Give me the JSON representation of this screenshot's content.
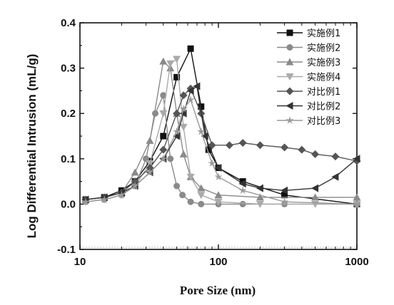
{
  "chart_data": {
    "type": "line",
    "x_scale": "log",
    "xlabel": "Pore Size (nm)",
    "ylabel": "Log Differential Intrusion (mL/g)",
    "xlim": [
      10,
      1000
    ],
    "ylim": [
      -0.1,
      0.4
    ],
    "x_ticks": [
      10,
      100,
      1000
    ],
    "y_ticks": [
      -0.1,
      0.0,
      0.1,
      0.2,
      0.3,
      0.4
    ],
    "x_tick_labels": [
      "10",
      "100",
      "1000"
    ],
    "y_tick_labels": [
      "-0.1",
      "0.0",
      "0.1",
      "0.2",
      "0.3",
      "0.4"
    ],
    "legend_position": "top-right",
    "series": [
      {
        "name": "实施例1",
        "marker": "square",
        "color": "#111111",
        "x": [
          11,
          15,
          20,
          25,
          32,
          40,
          50,
          63,
          75,
          85,
          100,
          150,
          300,
          1000
        ],
        "y": [
          0.01,
          0.015,
          0.03,
          0.05,
          0.095,
          0.15,
          0.28,
          0.343,
          0.215,
          0.12,
          0.08,
          0.05,
          0.02,
          0.0
        ]
      },
      {
        "name": "实施例2",
        "marker": "circle",
        "color": "#8a8a8a",
        "x": [
          11,
          15,
          20,
          25,
          30,
          35,
          40,
          45,
          50,
          55,
          63,
          75,
          100,
          150,
          300,
          1000
        ],
        "y": [
          0.005,
          0.01,
          0.02,
          0.04,
          0.1,
          0.2,
          0.24,
          0.1,
          0.04,
          0.02,
          0.005,
          0.0,
          0.0,
          0.0,
          0.0,
          0.0
        ]
      },
      {
        "name": "实施例3",
        "marker": "triangle-up",
        "color": "#8a8a8a",
        "x": [
          11,
          15,
          20,
          25,
          32,
          40,
          45,
          50,
          56,
          63,
          75,
          100,
          200,
          500,
          1000
        ],
        "y": [
          0.01,
          0.015,
          0.025,
          0.07,
          0.14,
          0.315,
          0.3,
          0.2,
          0.11,
          0.06,
          0.035,
          0.02,
          0.015,
          0.015,
          0.015
        ]
      },
      {
        "name": "实施例4",
        "marker": "triangle-down",
        "color": "#aaaaaa",
        "x": [
          11,
          15,
          20,
          25,
          32,
          40,
          45,
          50,
          56,
          63,
          75,
          100,
          200,
          500,
          1000
        ],
        "y": [
          0.005,
          0.01,
          0.02,
          0.04,
          0.09,
          0.2,
          0.31,
          0.32,
          0.17,
          0.06,
          0.02,
          0.005,
          0.0,
          0.0,
          0.0
        ]
      },
      {
        "name": "对比例1",
        "marker": "diamond",
        "color": "#555555",
        "x": [
          11,
          15,
          20,
          25,
          32,
          40,
          50,
          56,
          63,
          75,
          90,
          120,
          150,
          200,
          300,
          400,
          500,
          700,
          1000
        ],
        "y": [
          0.01,
          0.015,
          0.025,
          0.05,
          0.08,
          0.12,
          0.2,
          0.24,
          0.255,
          0.2,
          0.13,
          0.13,
          0.135,
          0.13,
          0.125,
          0.12,
          0.11,
          0.105,
          0.095
        ]
      },
      {
        "name": "对比例2",
        "marker": "triangle-left",
        "color": "#333333",
        "x": [
          11,
          15,
          20,
          25,
          32,
          40,
          50,
          56,
          63,
          70,
          80,
          100,
          150,
          200,
          300,
          500,
          700,
          1000
        ],
        "y": [
          0.01,
          0.015,
          0.025,
          0.04,
          0.07,
          0.1,
          0.15,
          0.2,
          0.25,
          0.26,
          0.15,
          0.08,
          0.045,
          0.035,
          0.03,
          0.035,
          0.06,
          0.1
        ]
      },
      {
        "name": "对比例3",
        "marker": "star",
        "color": "#999999",
        "x": [
          11,
          15,
          20,
          25,
          32,
          40,
          50,
          56,
          63,
          75,
          90,
          100,
          150,
          300,
          1000
        ],
        "y": [
          0.005,
          0.01,
          0.02,
          0.04,
          0.07,
          0.1,
          0.16,
          0.21,
          0.23,
          0.16,
          0.09,
          0.06,
          0.03,
          0.005,
          0.0
        ]
      }
    ]
  }
}
